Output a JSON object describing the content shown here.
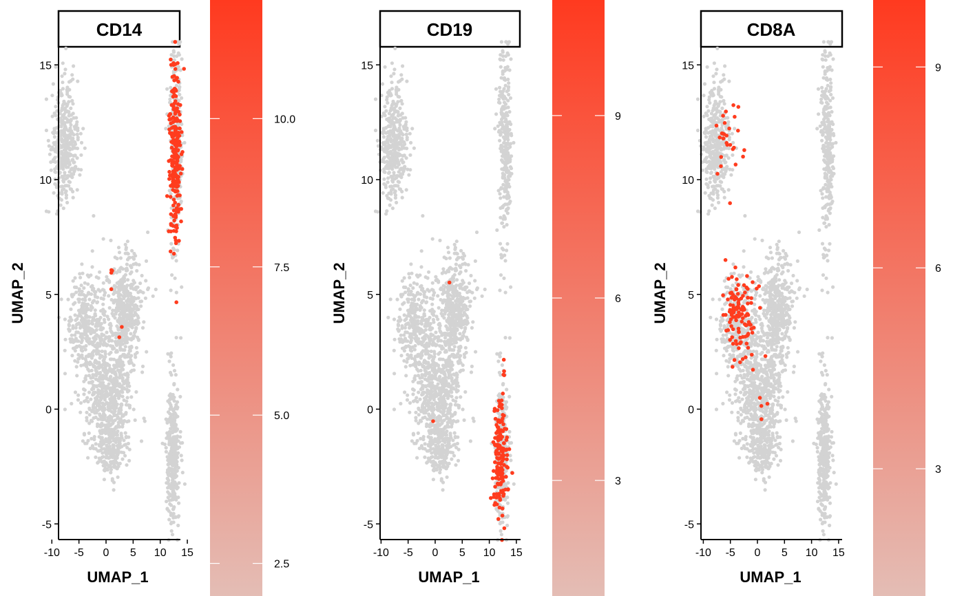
{
  "colors": {
    "background_cells": "#d3d3d3",
    "expressing_cells": "#ff3c1e",
    "legend_low": "#e4bdb5",
    "legend_high": "#ff3a1f"
  },
  "chart_data": [
    {
      "type": "scatter",
      "title": "CD14",
      "xlabel": "UMAP_1",
      "ylabel": "UMAP_2",
      "xlim": [
        -11,
        16.5
      ],
      "ylim": [
        -5.7,
        16
      ],
      "x_ticks": [
        -10,
        -5,
        0,
        5,
        10,
        15
      ],
      "x_tick_labels": [
        "-10",
        "-5",
        "0",
        "5",
        "10",
        "15"
      ],
      "y_ticks": [
        -5,
        0,
        5,
        10,
        15
      ],
      "y_tick_labels": [
        "-5",
        "0",
        "5",
        "10",
        "15"
      ],
      "legend": {
        "range": [
          1.95,
          12.0
        ],
        "ticks": [
          2.5,
          5.0,
          7.5,
          10.0
        ],
        "tick_labels": [
          "2.5",
          "5.0",
          "7.5",
          "10.0"
        ]
      },
      "expressing_regions": [
        {
          "cx": 12.8,
          "cy": 11.0,
          "sx": 0.55,
          "sy": 1.9,
          "n": 230
        },
        {
          "cx": 1.0,
          "cy": 6.1,
          "sx": 0.25,
          "sy": 0.4,
          "n": 4
        },
        {
          "cx": 2.5,
          "cy": 3.6,
          "sx": 0.8,
          "sy": 0.2,
          "n": 2
        }
      ]
    },
    {
      "type": "scatter",
      "title": "CD19",
      "xlabel": "UMAP_1",
      "ylabel": "UMAP_2",
      "xlim": [
        -11,
        16.5
      ],
      "ylim": [
        -5.7,
        16
      ],
      "x_ticks": [
        -10,
        -5,
        0,
        5,
        10,
        15
      ],
      "x_tick_labels": [
        "-10",
        "-5",
        "0",
        "5",
        "10",
        "15"
      ],
      "y_ticks": [
        -5,
        0,
        5,
        10,
        15
      ],
      "y_tick_labels": [
        "-5",
        "0",
        "5",
        "10",
        "15"
      ],
      "legend": {
        "range": [
          1.1,
          10.9
        ],
        "ticks": [
          3,
          6,
          9
        ],
        "tick_labels": [
          "3",
          "6",
          "9"
        ]
      },
      "expressing_regions": [
        {
          "cx": 12.0,
          "cy": -2.2,
          "sx": 0.6,
          "sy": 1.3,
          "n": 160
        },
        {
          "cx": 12.6,
          "cy": 1.6,
          "sx": 0.2,
          "sy": 0.5,
          "n": 4
        },
        {
          "cx": -0.2,
          "cy": -0.4,
          "sx": 0.1,
          "sy": 0.1,
          "n": 1
        },
        {
          "cx": 2.6,
          "cy": 5.7,
          "sx": 0.1,
          "sy": 0.1,
          "n": 1
        }
      ]
    },
    {
      "type": "scatter",
      "title": "CD8A",
      "xlabel": "UMAP_1",
      "ylabel": "UMAP_2",
      "xlim": [
        -11,
        16.5
      ],
      "ylim": [
        -5.7,
        16
      ],
      "x_ticks": [
        -10,
        -5,
        0,
        5,
        10,
        15
      ],
      "x_tick_labels": [
        "-10",
        "-5",
        "0",
        "5",
        "10",
        "15"
      ],
      "y_ticks": [
        -5,
        0,
        5,
        10,
        15
      ],
      "y_tick_labels": [
        "-5",
        "0",
        "5",
        "10",
        "15"
      ],
      "legend": {
        "range": [
          1.1,
          10.0
        ],
        "ticks": [
          3,
          6,
          9
        ],
        "tick_labels": [
          "3",
          "6",
          "9"
        ]
      },
      "expressing_regions": [
        {
          "cx": -3.3,
          "cy": 4.1,
          "sx": 1.4,
          "sy": 0.9,
          "n": 120
        },
        {
          "cx": -5.5,
          "cy": 11.8,
          "sx": 1.4,
          "sy": 1.0,
          "n": 28
        },
        {
          "cx": 0.8,
          "cy": 0.2,
          "sx": 1.2,
          "sy": 0.6,
          "n": 5
        }
      ]
    }
  ]
}
